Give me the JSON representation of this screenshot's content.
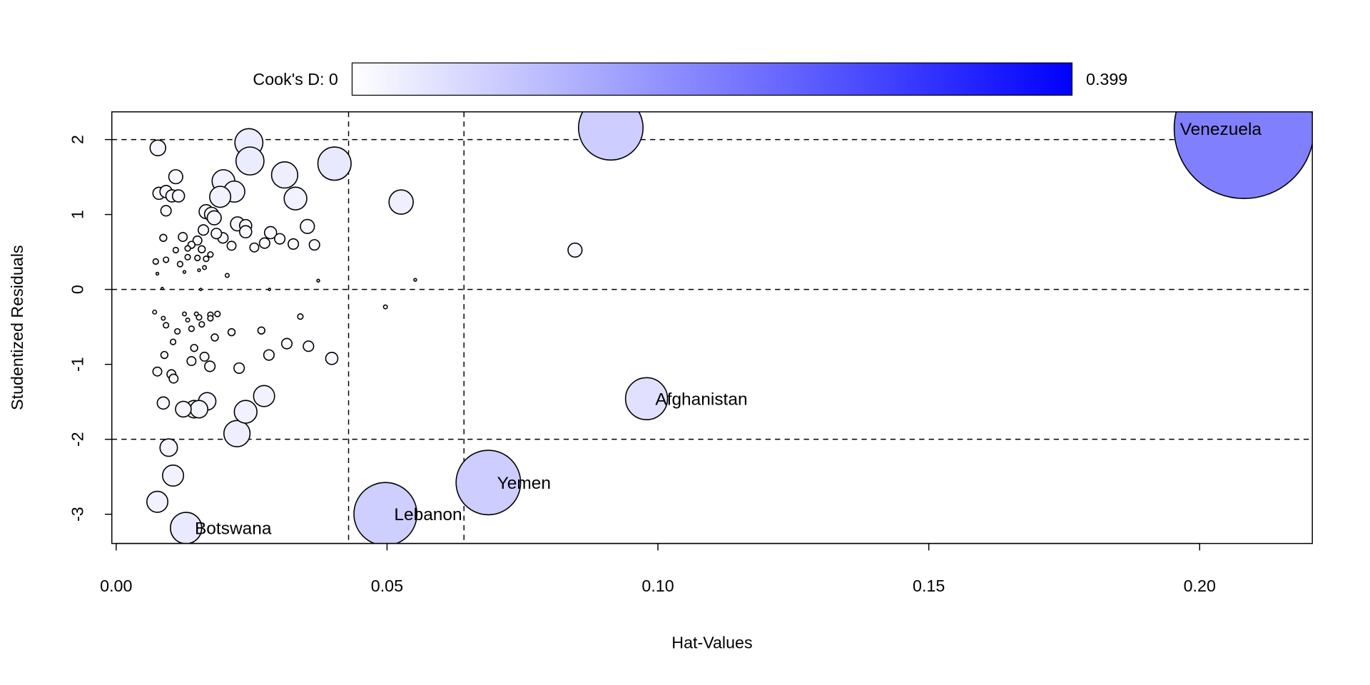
{
  "chart_data": {
    "type": "scatter",
    "title": "",
    "xlabel": "Hat-Values",
    "ylabel": "Studentized Residuals",
    "xlim": [
      -0.0008,
      0.2208
    ],
    "ylim": [
      -3.39,
      2.37
    ],
    "x_ticks": [
      0.0,
      0.05,
      0.1,
      0.15,
      0.2
    ],
    "x_tick_labels": [
      "0.00",
      "0.05",
      "0.10",
      "0.15",
      "0.20"
    ],
    "y_ticks": [
      2,
      1,
      0,
      -1,
      -2,
      -3
    ],
    "y_tick_labels": [
      "2",
      "1",
      "0",
      "-1",
      "-2",
      "-3"
    ],
    "grid": false,
    "reference_lines": {
      "vertical": [
        0.0429,
        0.0642
      ],
      "horizontal": [
        -2,
        0,
        2
      ]
    },
    "colorbar": {
      "label_min": "Cook's D: 0",
      "label_max": "0.399",
      "min": 0,
      "max": 0.399,
      "color_low": "#ffffff",
      "color_high": "#0000ff",
      "placement": "top"
    },
    "size_encoding": "Cook's D",
    "labeled_points": [
      {
        "label": "Venezuela",
        "x": 0.2082,
        "y": 2.146,
        "cookd": 0.399
      },
      {
        "label": "Afghanistan",
        "x": 0.0979,
        "y": -1.458,
        "cookd": 0.036
      },
      {
        "label": "Yemen",
        "x": 0.0687,
        "y": -2.577,
        "cookd": 0.085
      },
      {
        "label": "Lebanon",
        "x": 0.0497,
        "y": -2.997,
        "cookd": 0.081
      },
      {
        "label": "Botswana",
        "x": 0.0129,
        "y": -3.184,
        "cookd": 0.02
      }
    ],
    "points": [
      [
        0.0913,
        2.157,
        0.085
      ],
      [
        0.0526,
        1.166,
        0.012
      ],
      [
        0.0847,
        0.525,
        0.004
      ],
      [
        0.0497,
        -0.233,
        0.0003
      ],
      [
        0.0552,
        0.128,
        0.00015
      ],
      [
        0.0373,
        0.117,
        0.00015
      ],
      [
        0.0403,
        1.679,
        0.0225
      ],
      [
        0.0245,
        1.959,
        0.016
      ],
      [
        0.0247,
        1.714,
        0.016
      ],
      [
        0.0311,
        1.528,
        0.014
      ],
      [
        0.0331,
        1.213,
        0.0105
      ],
      [
        0.0198,
        1.446,
        0.0105
      ],
      [
        0.0218,
        1.306,
        0.009
      ],
      [
        0.0192,
        1.236,
        0.009
      ],
      [
        0.0077,
        1.889,
        0.005
      ],
      [
        0.011,
        1.504,
        0.004
      ],
      [
        0.0079,
        1.283,
        0.003
      ],
      [
        0.0092,
        1.306,
        0.003
      ],
      [
        0.0103,
        1.248,
        0.003
      ],
      [
        0.0115,
        1.248,
        0.003
      ],
      [
        0.0092,
        1.05,
        0.0022
      ],
      [
        0.0166,
        1.038,
        0.004
      ],
      [
        0.0176,
        1.003,
        0.004
      ],
      [
        0.0181,
        0.956,
        0.004
      ],
      [
        0.0087,
        0.688,
        0.001
      ],
      [
        0.0123,
        0.7,
        0.0016
      ],
      [
        0.0161,
        0.793,
        0.0022
      ],
      [
        0.015,
        0.653,
        0.0016
      ],
      [
        0.0139,
        0.595,
        0.001
      ],
      [
        0.0197,
        0.688,
        0.0022
      ],
      [
        0.0213,
        0.583,
        0.0016
      ],
      [
        0.0224,
        0.875,
        0.004
      ],
      [
        0.0239,
        0.851,
        0.003
      ],
      [
        0.0239,
        0.77,
        0.003
      ],
      [
        0.0255,
        0.56,
        0.0016
      ],
      [
        0.0274,
        0.618,
        0.0022
      ],
      [
        0.0285,
        0.758,
        0.003
      ],
      [
        0.0302,
        0.676,
        0.0022
      ],
      [
        0.0327,
        0.606,
        0.0022
      ],
      [
        0.0353,
        0.84,
        0.004
      ],
      [
        0.0366,
        0.595,
        0.0022
      ],
      [
        0.0158,
        0.536,
        0.001
      ],
      [
        0.0185,
        0.746,
        0.0022
      ],
      [
        0.0073,
        0.373,
        0.0006
      ],
      [
        0.0092,
        0.396,
        0.0006
      ],
      [
        0.011,
        0.525,
        0.0006
      ],
      [
        0.0118,
        0.338,
        0.0006
      ],
      [
        0.0132,
        0.548,
        0.0006
      ],
      [
        0.0132,
        0.431,
        0.0006
      ],
      [
        0.015,
        0.42,
        0.0006
      ],
      [
        0.0166,
        0.408,
        0.0006
      ],
      [
        0.0174,
        0.466,
        0.0006
      ],
      [
        0.0076,
        0.21,
        0.00015
      ],
      [
        0.0126,
        0.233,
        0.00015
      ],
      [
        0.0153,
        0.257,
        0.00015
      ],
      [
        0.0163,
        0.292,
        0.0003
      ],
      [
        0.0205,
        0.187,
        0.0003
      ],
      [
        0.0085,
        0.012,
        0.0001
      ],
      [
        0.0156,
        0.0,
        0.0001
      ],
      [
        0.0283,
        0.0,
        0.0001
      ],
      [
        0.0071,
        -0.303,
        0.0003
      ],
      [
        0.0087,
        -0.385,
        0.0003
      ],
      [
        0.0092,
        -0.478,
        0.0006
      ],
      [
        0.0105,
        -0.7,
        0.0006
      ],
      [
        0.0113,
        -0.56,
        0.0006
      ],
      [
        0.0126,
        -0.327,
        0.0003
      ],
      [
        0.0132,
        -0.408,
        0.0003
      ],
      [
        0.0148,
        -0.327,
        0.0003
      ],
      [
        0.0153,
        -0.373,
        0.0006
      ],
      [
        0.0174,
        -0.338,
        0.0006
      ],
      [
        0.0174,
        -0.385,
        0.0006
      ],
      [
        0.0187,
        -0.327,
        0.0006
      ],
      [
        0.0213,
        -0.571,
        0.001
      ],
      [
        0.0268,
        -0.548,
        0.001
      ],
      [
        0.0158,
        -0.466,
        0.0006
      ],
      [
        0.0139,
        -0.525,
        0.0006
      ],
      [
        0.0182,
        -0.641,
        0.001
      ],
      [
        0.034,
        -0.362,
        0.0006
      ],
      [
        0.0089,
        -0.875,
        0.001
      ],
      [
        0.0163,
        -0.898,
        0.0016
      ],
      [
        0.0139,
        -0.956,
        0.0016
      ],
      [
        0.0144,
        -0.781,
        0.001
      ],
      [
        0.0076,
        -1.096,
        0.0016
      ],
      [
        0.0102,
        -1.131,
        0.0016
      ],
      [
        0.0106,
        -1.19,
        0.0016
      ],
      [
        0.0173,
        -1.026,
        0.0022
      ],
      [
        0.0227,
        -1.05,
        0.0022
      ],
      [
        0.0282,
        -0.875,
        0.0022
      ],
      [
        0.0315,
        -0.723,
        0.0022
      ],
      [
        0.0355,
        -0.758,
        0.0022
      ],
      [
        0.0398,
        -0.921,
        0.003
      ],
      [
        0.0087,
        -1.516,
        0.003
      ],
      [
        0.0168,
        -1.493,
        0.0062
      ],
      [
        0.0124,
        -1.598,
        0.005
      ],
      [
        0.0144,
        -1.598,
        0.0062
      ],
      [
        0.0153,
        -1.598,
        0.0062
      ],
      [
        0.0273,
        -1.423,
        0.009
      ],
      [
        0.0239,
        -1.633,
        0.0105
      ],
      [
        0.0223,
        -1.924,
        0.014
      ],
      [
        0.0097,
        -2.111,
        0.0062
      ],
      [
        0.0105,
        -2.484,
        0.009
      ],
      [
        0.0076,
        -2.834,
        0.009
      ]
    ]
  }
}
